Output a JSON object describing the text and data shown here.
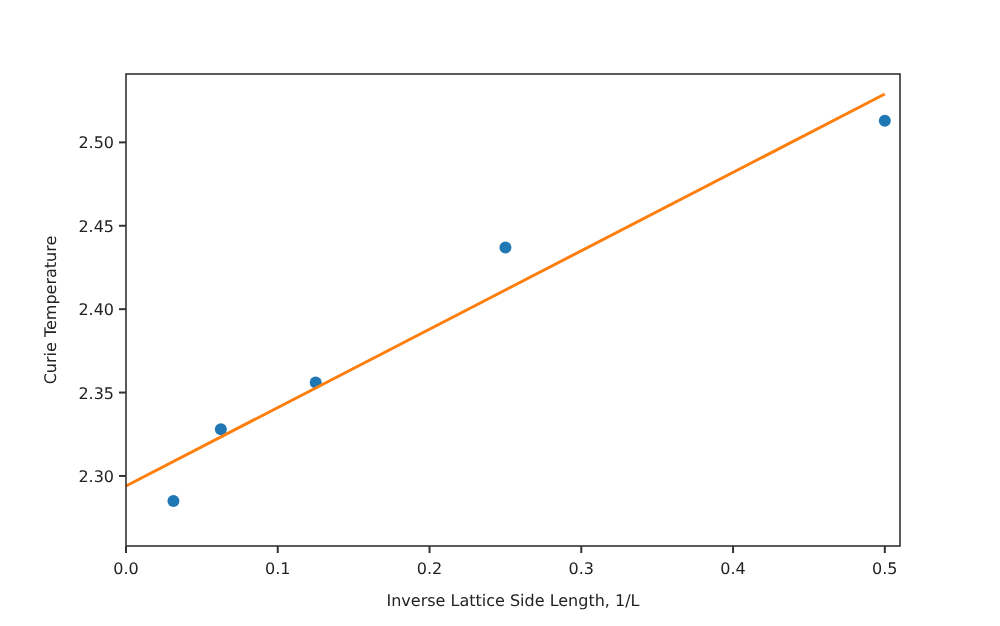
{
  "chart_data": {
    "type": "scatter",
    "xlabel": "Inverse Lattice Side Length, 1/L",
    "ylabel": "Curie Temperature",
    "xlim": [
      0,
      0.51
    ],
    "ylim": [
      2.258,
      2.541
    ],
    "xticks": [
      {
        "value": 0,
        "label": "0.0"
      },
      0.1,
      0.2,
      0.3,
      0.4,
      0.5
    ],
    "yticks": [
      {
        "value": 2.3,
        "label": "2.30"
      },
      2.35,
      {
        "value": 2.4,
        "label": "2.40"
      },
      2.45,
      {
        "value": 2.5,
        "label": "2.50"
      }
    ],
    "grid": false,
    "series": [
      {
        "color": "#1f77b4",
        "marker": "circle",
        "x": [
          0.03125,
          0.0625,
          0.125,
          0.25,
          0.5
        ],
        "values": [
          2.285,
          2.328,
          2.356,
          2.437,
          2.513
        ]
      },
      {
        "type": "line",
        "color": "#ff7f0e",
        "marker": "none",
        "line_style": "solid",
        "x": [
          0,
          0.5
        ],
        "values": [
          2.294,
          2.529
        ]
      }
    ]
  }
}
